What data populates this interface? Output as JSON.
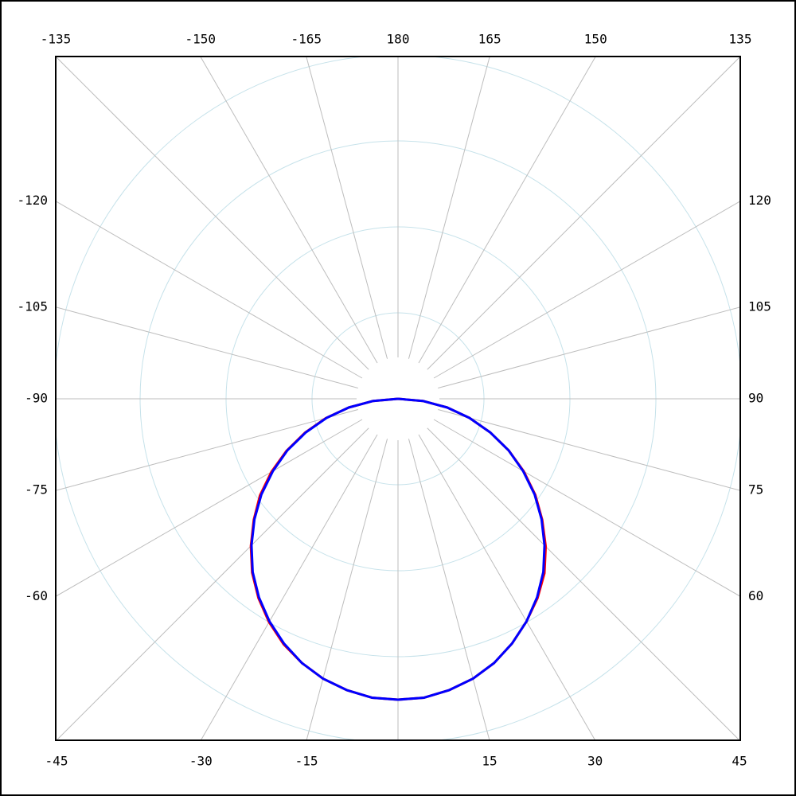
{
  "chart_data": {
    "type": "polar",
    "zero_direction": "down",
    "angle_ticks": [
      -135,
      -150,
      -165,
      180,
      165,
      150,
      135,
      -120,
      -105,
      -90,
      -75,
      -60,
      120,
      105,
      90,
      75,
      60,
      -45,
      -30,
      -15,
      15,
      30,
      45
    ],
    "spoke_step": 15,
    "rlim": [
      0,
      4
    ],
    "rticks": [
      1,
      2,
      3,
      4
    ],
    "x": [
      -90,
      -85,
      -80,
      -75,
      -70,
      -65,
      -60,
      -55,
      -50,
      -45,
      -40,
      -35,
      -30,
      -25,
      -20,
      -15,
      -10,
      -5,
      0,
      5,
      10,
      15,
      20,
      25,
      30,
      35,
      40,
      45,
      50,
      55,
      60,
      65,
      70,
      75,
      80,
      85,
      90
    ],
    "series": [
      {
        "color": "#ff0000",
        "values": [
          0,
          0.29,
          0.58,
          0.87,
          1.15,
          1.43,
          1.7,
          1.96,
          2.19,
          2.42,
          2.64,
          2.83,
          3.0,
          3.15,
          3.27,
          3.37,
          3.44,
          3.49,
          3.5,
          3.49,
          3.44,
          3.37,
          3.27,
          3.14,
          2.99,
          2.83,
          2.65,
          2.43,
          2.19,
          1.95,
          1.69,
          1.42,
          1.14,
          0.86,
          0.58,
          0.29,
          0
        ]
      },
      {
        "color": "#0000ff",
        "values": [
          0,
          0.29,
          0.58,
          0.86,
          1.14,
          1.42,
          1.68,
          1.94,
          2.18,
          2.41,
          2.63,
          2.82,
          2.99,
          3.14,
          3.27,
          3.37,
          3.44,
          3.49,
          3.5,
          3.49,
          3.44,
          3.37,
          3.27,
          3.14,
          2.99,
          2.82,
          2.63,
          2.41,
          2.18,
          1.94,
          1.68,
          1.42,
          1.14,
          0.86,
          0.58,
          0.29,
          0
        ]
      }
    ],
    "grid": true
  }
}
